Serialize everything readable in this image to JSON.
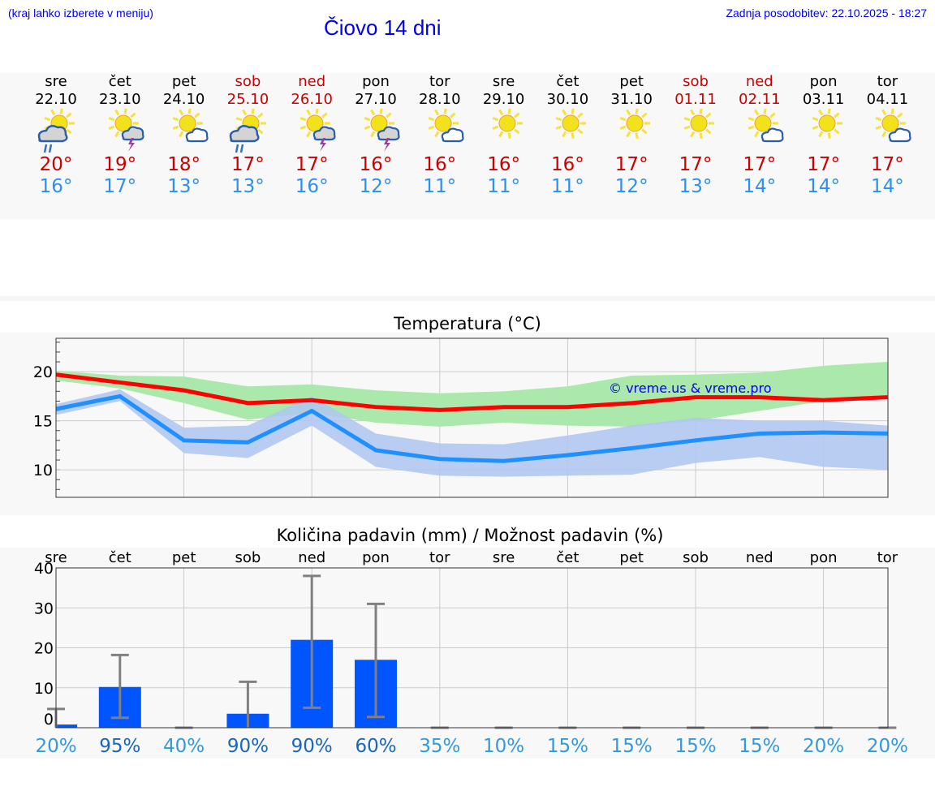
{
  "header": {
    "hint": "(kraj lahko izberete v meniju)",
    "title": "Čiovo 14 dni",
    "updated": "Zadnja posodobitev: 22.10.2025 - 18:27"
  },
  "days": [
    {
      "name": "sre",
      "date": "22.10",
      "weekend": false,
      "icon": "sun-cloud-rain-icon",
      "max": "20°",
      "min": "16°",
      "pct": "20%"
    },
    {
      "name": "čet",
      "date": "23.10",
      "weekend": false,
      "icon": "sun-cloud-thunder-icon",
      "max": "19°",
      "min": "17°",
      "pct": "95%"
    },
    {
      "name": "pet",
      "date": "24.10",
      "weekend": false,
      "icon": "sun-partly-cloudy-icon",
      "max": "18°",
      "min": "13°",
      "pct": "40%"
    },
    {
      "name": "sob",
      "date": "25.10",
      "weekend": true,
      "icon": "sun-cloud-rain-icon",
      "max": "17°",
      "min": "13°",
      "pct": "90%"
    },
    {
      "name": "ned",
      "date": "26.10",
      "weekend": true,
      "icon": "sun-cloud-thunder-icon",
      "max": "17°",
      "min": "16°",
      "pct": "90%"
    },
    {
      "name": "pon",
      "date": "27.10",
      "weekend": false,
      "icon": "sun-cloud-thunder-icon",
      "max": "16°",
      "min": "12°",
      "pct": "60%"
    },
    {
      "name": "tor",
      "date": "28.10",
      "weekend": false,
      "icon": "sun-partly-cloudy-icon",
      "max": "16°",
      "min": "11°",
      "pct": "35%"
    },
    {
      "name": "sre",
      "date": "29.10",
      "weekend": false,
      "icon": "sun-icon",
      "max": "16°",
      "min": "11°",
      "pct": "10%"
    },
    {
      "name": "čet",
      "date": "30.10",
      "weekend": false,
      "icon": "sun-icon",
      "max": "16°",
      "min": "11°",
      "pct": "15%"
    },
    {
      "name": "pet",
      "date": "31.10",
      "weekend": false,
      "icon": "sun-icon",
      "max": "17°",
      "min": "12°",
      "pct": "15%"
    },
    {
      "name": "sob",
      "date": "01.11",
      "weekend": true,
      "icon": "sun-icon",
      "max": "17°",
      "min": "13°",
      "pct": "15%"
    },
    {
      "name": "ned",
      "date": "02.11",
      "weekend": true,
      "icon": "sun-partly-cloudy-icon",
      "max": "17°",
      "min": "14°",
      "pct": "15%"
    },
    {
      "name": "pon",
      "date": "03.11",
      "weekend": false,
      "icon": "sun-icon",
      "max": "17°",
      "min": "14°",
      "pct": "20%"
    },
    {
      "name": "tor",
      "date": "04.11",
      "weekend": false,
      "icon": "sun-partly-cloudy-icon",
      "max": "17°",
      "min": "14°",
      "pct": "20%"
    }
  ],
  "colors": {
    "max": "#ff0000",
    "min": "#1e90ff",
    "maxBand": "#abe8ab",
    "minBand": "#aec6f2",
    "bar": "#0055ff",
    "err": "#808080",
    "pctLow": "#3399dd",
    "pctHigh": "#1a66bb"
  },
  "chart_data": [
    {
      "type": "line",
      "title": "Temperatura (°C)",
      "ylim": [
        7.2,
        23.4
      ],
      "yticks": [
        10,
        15,
        20
      ],
      "watermark": "© vreme.us & vreme.pro",
      "series": [
        {
          "name": "max",
          "values": [
            19.7,
            18.9,
            18.1,
            16.8,
            17.1,
            16.4,
            16.1,
            16.4,
            16.4,
            16.8,
            17.4,
            17.4,
            17.1,
            17.4
          ],
          "upper": [
            20.1,
            19.6,
            19.5,
            18.5,
            18.7,
            18.1,
            17.8,
            18.0,
            18.5,
            19.6,
            19.7,
            19.9,
            20.6,
            21.0
          ],
          "lower": [
            19.1,
            18.3,
            16.8,
            15.1,
            15.8,
            14.8,
            14.4,
            14.8,
            14.5,
            14.4,
            15.0,
            16.0,
            17.0,
            17.3
          ]
        },
        {
          "name": "min",
          "values": [
            16.2,
            17.5,
            13.0,
            12.8,
            16.0,
            12.0,
            11.1,
            10.9,
            11.5,
            12.2,
            13.0,
            13.7,
            13.8,
            13.7
          ],
          "upper": [
            16.7,
            18.2,
            14.3,
            14.5,
            17.5,
            13.7,
            12.7,
            12.6,
            13.5,
            14.5,
            15.3,
            15.0,
            15.0,
            14.5
          ],
          "lower": [
            15.6,
            17.0,
            11.7,
            11.2,
            14.5,
            10.3,
            9.4,
            9.3,
            9.4,
            9.5,
            10.7,
            11.3,
            10.3,
            10.0
          ]
        }
      ]
    },
    {
      "type": "bar",
      "title": "Količina padavin (mm) / Možnost padavin (%)",
      "ylim": [
        0,
        40
      ],
      "yticks": [
        0,
        10,
        20,
        30,
        40
      ],
      "values": [
        0.8,
        10.2,
        0,
        3.5,
        22,
        17,
        0,
        0,
        0,
        0,
        0,
        0,
        0,
        0
      ],
      "err_low": [
        0,
        2.5,
        0,
        0,
        5,
        2.7,
        0,
        0,
        0,
        0,
        0,
        0,
        0,
        0
      ],
      "err_high": [
        4.7,
        18.2,
        0,
        11.5,
        38,
        31,
        0,
        0,
        0,
        0,
        0,
        0,
        0,
        0
      ]
    }
  ]
}
